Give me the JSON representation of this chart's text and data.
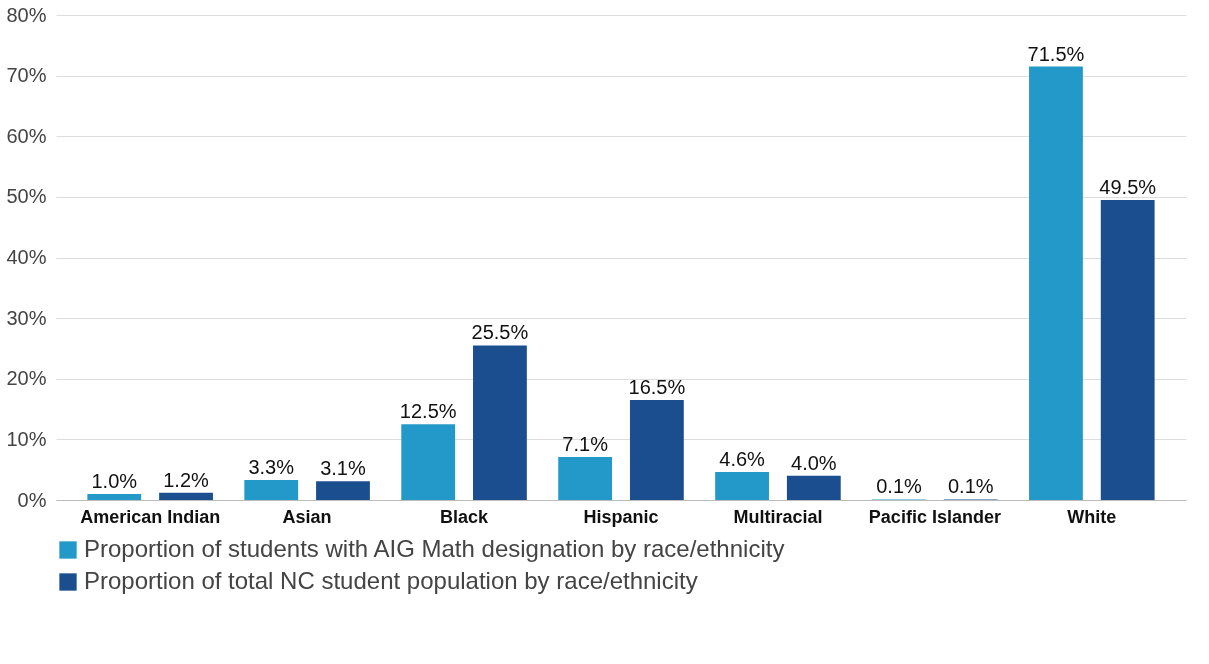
{
  "chart_data": {
    "type": "bar",
    "categories": [
      "American Indian",
      "Asian",
      "Black",
      "Hispanic",
      "Multiracial",
      "Pacific Islander",
      "White"
    ],
    "series": [
      {
        "name": "Proportion of students with AIG Math designation by race/ethnicity",
        "color": "#2399c9",
        "values": [
          1.0,
          3.3,
          12.5,
          7.1,
          4.6,
          0.1,
          71.5
        ],
        "value_labels": [
          "1.0%",
          "3.3%",
          "12.5%",
          "7.1%",
          "4.6%",
          "0.1%",
          "71.5%"
        ]
      },
      {
        "name": "Proportion of total NC student population by race/ethnicity",
        "color": "#1a4e8f",
        "values": [
          1.2,
          3.1,
          25.5,
          16.5,
          4.0,
          0.1,
          49.5
        ],
        "value_labels": [
          "1.2%",
          "3.1%",
          "25.5%",
          "16.5%",
          "4.0%",
          "0.1%",
          "49.5%"
        ]
      }
    ],
    "ylim": [
      0,
      80
    ],
    "yticks": [
      {
        "value": 0,
        "label": "0%"
      },
      {
        "value": 10,
        "label": "10%"
      },
      {
        "value": 20,
        "label": "20%"
      },
      {
        "value": 30,
        "label": "30%"
      },
      {
        "value": 40,
        "label": "40%"
      },
      {
        "value": 50,
        "label": "50%"
      },
      {
        "value": 60,
        "label": "60%"
      },
      {
        "value": 70,
        "label": "70%"
      },
      {
        "value": 80,
        "label": "80%"
      }
    ],
    "grid": "y",
    "legend": "bottom"
  }
}
